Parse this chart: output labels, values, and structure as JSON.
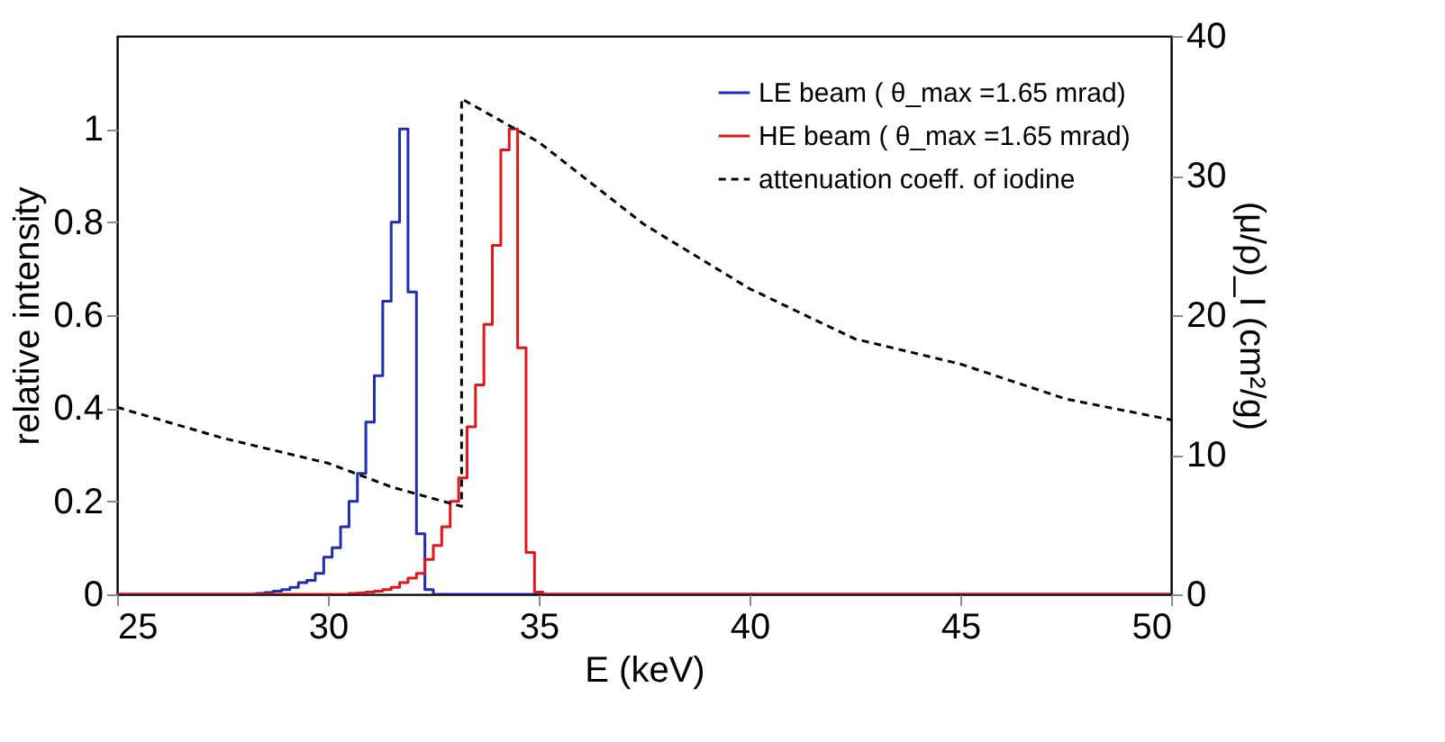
{
  "chart_data": {
    "type": "step",
    "xlabel": "E (keV)",
    "ylabel": "relative intensity",
    "y2label": "(μ/ρ)_I (cm²/g)",
    "xlim": [
      25,
      50
    ],
    "xticks": [
      25,
      30,
      35,
      40,
      45,
      50
    ],
    "ylim": [
      0,
      1.2
    ],
    "yticks": [
      0,
      0.2,
      0.4,
      0.6,
      0.8,
      1
    ],
    "y2lim": [
      0,
      40
    ],
    "y2ticks": [
      0,
      10,
      20,
      30,
      40
    ],
    "grid": false,
    "legend": "top right",
    "series": [
      {
        "name": "LE beam ( θ_max =1.65 mrad)",
        "color": "#1f2db0",
        "line_style": "solid",
        "x": [
          25,
          28.2,
          28.4,
          28.6,
          28.8,
          29.0,
          29.2,
          29.4,
          29.6,
          29.8,
          30.0,
          30.2,
          30.4,
          30.6,
          30.8,
          31.0,
          31.2,
          31.4,
          31.6,
          31.8,
          32.0,
          32.2,
          32.4,
          32.6,
          50
        ],
        "values": [
          0,
          0,
          0.002,
          0.004,
          0.007,
          0.01,
          0.015,
          0.025,
          0.03,
          0.045,
          0.08,
          0.1,
          0.145,
          0.2,
          0.26,
          0.37,
          0.47,
          0.63,
          0.8,
          1.0,
          0.65,
          0.13,
          0.01,
          0,
          0
        ]
      },
      {
        "name": "HE beam ( θ_max =1.65 mrad)",
        "color": "#e0161b",
        "line_style": "solid",
        "x": [
          25,
          30.4,
          30.6,
          30.8,
          31.0,
          31.2,
          31.4,
          31.6,
          31.8,
          32.0,
          32.2,
          32.4,
          32.6,
          32.8,
          33.0,
          33.2,
          33.4,
          33.6,
          33.8,
          34.0,
          34.2,
          34.4,
          34.6,
          34.8,
          35.0,
          35.2,
          50
        ],
        "values": [
          0,
          0,
          0.002,
          0.003,
          0.005,
          0.007,
          0.01,
          0.015,
          0.025,
          0.035,
          0.045,
          0.075,
          0.105,
          0.145,
          0.2,
          0.25,
          0.36,
          0.45,
          0.58,
          0.75,
          0.955,
          1.0,
          0.53,
          0.09,
          0.005,
          0,
          0
        ]
      },
      {
        "name": "attenuation coeff. of iodine",
        "color": "#000000",
        "type": "line",
        "line_style": "dashed",
        "axis": "y2",
        "x": [
          25,
          27.5,
          30,
          31.5,
          33.17,
          33.17,
          35,
          37.5,
          40,
          42.5,
          45,
          47.5,
          50
        ],
        "values": [
          13.4,
          11.2,
          9.4,
          7.7,
          6.3,
          35.5,
          32.4,
          26.5,
          21.9,
          18.3,
          16.5,
          14.0,
          12.5
        ]
      }
    ]
  }
}
